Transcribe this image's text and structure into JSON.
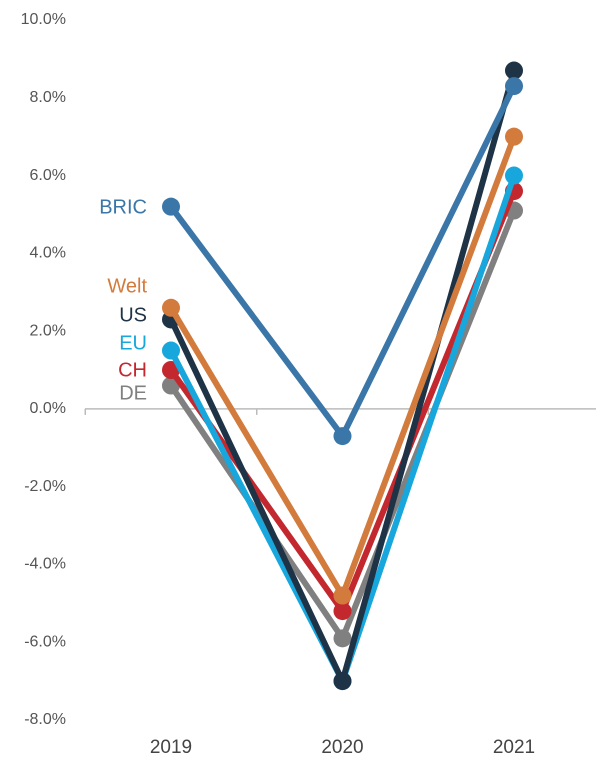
{
  "chart_data": {
    "type": "line",
    "categories": [
      "2019",
      "2020",
      "2021"
    ],
    "series": [
      {
        "name": "BRIC",
        "color": "#3b76a8",
        "values": [
          5.2,
          -0.7,
          8.3
        ]
      },
      {
        "name": "Welt",
        "color": "#d27b3c",
        "values": [
          2.6,
          -4.8,
          7.0
        ]
      },
      {
        "name": "US",
        "color": "#1f3347",
        "values": [
          2.3,
          -7.0,
          8.7
        ]
      },
      {
        "name": "EU",
        "color": "#17a7dd",
        "values": [
          1.5,
          -7.0,
          6.0
        ]
      },
      {
        "name": "CH",
        "color": "#c4282f",
        "values": [
          1.0,
          -5.2,
          5.6
        ]
      },
      {
        "name": "DE",
        "color": "#808080",
        "values": [
          0.6,
          -5.9,
          5.1
        ]
      }
    ],
    "ylim": [
      -8,
      10
    ],
    "yticks": [
      {
        "value": -8,
        "label": "-8.0%"
      },
      {
        "value": -6,
        "label": "-6.0%"
      },
      {
        "value": -4,
        "label": "-4.0%"
      },
      {
        "value": -2,
        "label": "-2.0%"
      },
      {
        "value": 0,
        "label": "0.0%"
      },
      {
        "value": 2,
        "label": "2.0%"
      },
      {
        "value": 4,
        "label": "4.0%"
      },
      {
        "value": 6,
        "label": "6.0%"
      },
      {
        "value": 8,
        "label": "8.0%"
      },
      {
        "value": 10,
        "label": "10.0%"
      }
    ],
    "grid": false
  }
}
